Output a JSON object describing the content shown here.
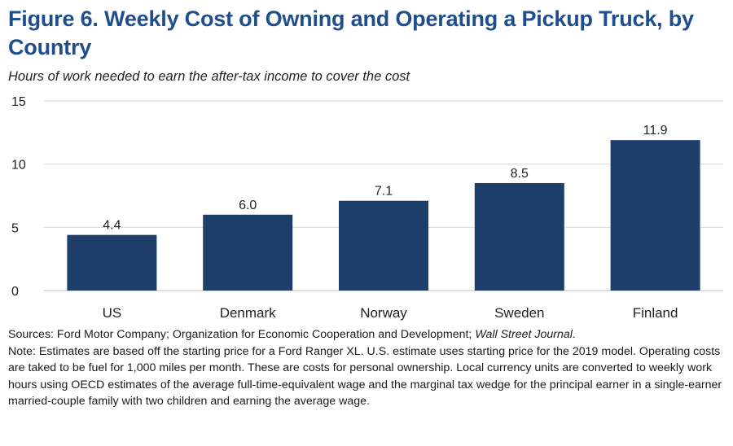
{
  "title": "Figure 6. Weekly Cost of Owning and Operating a Pickup Truck, by Country",
  "subtitle": "Hours of work needed to earn the after-tax income to cover the cost",
  "chart_data": {
    "type": "bar",
    "categories": [
      "US",
      "Denmark",
      "Norway",
      "Sweden",
      "Finland"
    ],
    "values": [
      4.4,
      6.0,
      7.1,
      8.5,
      11.9
    ],
    "value_labels": [
      "4.4",
      "6.0",
      "7.1",
      "8.5",
      "11.9"
    ],
    "ylim": [
      0,
      15
    ],
    "yticks": [
      0,
      5,
      10,
      15
    ],
    "grid": true,
    "bar_color": "#1f3f6b"
  },
  "notes": {
    "sources_prefix": "Sources: Ford Motor Company; Organization for Economic Cooperation and Development; ",
    "sources_italic": "Wall Street Journal",
    "sources_suffix": ".",
    "note_text": "Note: Estimates are based off the starting price for a Ford Ranger XL. U.S. estimate uses starting price for the 2019 model. Operating costs are taked to be fuel for 1,000 miles per month. These are costs for personal ownership. Local currency units are converted to weekly work hours using OECD estimates of the average full-time-equivalent wage and the marginal tax wedge for the principal earner in a single-earner married-couple family with two children and earning the average wage."
  }
}
